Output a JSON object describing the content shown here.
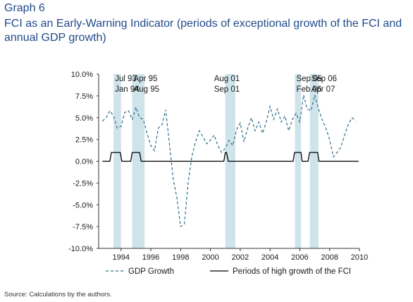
{
  "figure": {
    "label": "Graph 6",
    "title": "FCI as an Early-Warning Indicator (periods of exceptional growth of the FCI and annual GDP growth)",
    "source": "Source: Calculations by the authors."
  },
  "colors": {
    "title": "#1f4a8a",
    "shading": "#cfe3ea",
    "gdp_line": "#2e6e8a",
    "fci_line": "#000000",
    "axis_text": "#1a1a1a"
  },
  "chart_data": {
    "type": "line",
    "title": "",
    "xlabel": "",
    "ylabel": "",
    "xlim": [
      1992.5,
      2010.0
    ],
    "ylim": [
      -10.0,
      10.0
    ],
    "grid": false,
    "legend_position": "bottom",
    "x_ticks": [
      1994,
      1996,
      1998,
      2000,
      2002,
      2004,
      2006,
      2008,
      2010
    ],
    "x_tick_labels": [
      "1994",
      "1996",
      "1998",
      "2000",
      "2002",
      "2004",
      "2006",
      "2008",
      "2010"
    ],
    "y_ticks": [
      -10,
      -7.5,
      -5,
      -2.5,
      0,
      2.5,
      5,
      7.5,
      10
    ],
    "y_tick_labels": [
      "-10.0%",
      "-7.5%",
      "-5.0%",
      "-2.5%",
      "0.0%",
      "2.5%",
      "5.0%",
      "7.5%",
      "10.0%"
    ],
    "shaded_periods": [
      {
        "start": 1993.5,
        "end": 1994.0,
        "label_top": "Jul 93",
        "label_bottom": "Jan 94"
      },
      {
        "start": 1994.75,
        "end": 1995.58,
        "label_top": "Apr 95",
        "label_bottom": "Aug 95"
      },
      {
        "start": 2001.0,
        "end": 2001.67,
        "label_top": "Aug 01",
        "label_bottom": "Sep 01"
      },
      {
        "start": 2005.67,
        "end": 2006.08,
        "label_top": "Sep 05",
        "label_bottom": "Feb 06"
      },
      {
        "start": 2006.67,
        "end": 2007.25,
        "label_top": "Sep 06",
        "label_bottom": "Apr 07"
      }
    ],
    "series": [
      {
        "name": "GDP Growth",
        "style": "dashed",
        "points": [
          [
            1992.75,
            4.6
          ],
          [
            1993.0,
            5.0
          ],
          [
            1993.25,
            5.8
          ],
          [
            1993.5,
            5.2
          ],
          [
            1993.75,
            3.8
          ],
          [
            1994.0,
            4.0
          ],
          [
            1994.25,
            5.6
          ],
          [
            1994.5,
            5.8
          ],
          [
            1994.75,
            4.8
          ],
          [
            1995.0,
            6.2
          ],
          [
            1995.25,
            5.0
          ],
          [
            1995.5,
            4.8
          ],
          [
            1995.75,
            3.2
          ],
          [
            1996.0,
            1.8
          ],
          [
            1996.25,
            1.2
          ],
          [
            1996.5,
            3.8
          ],
          [
            1996.75,
            4.2
          ],
          [
            1997.0,
            5.9
          ],
          [
            1997.25,
            2.0
          ],
          [
            1997.5,
            -2.0
          ],
          [
            1997.75,
            -4.2
          ],
          [
            1998.0,
            -7.5
          ],
          [
            1998.25,
            -7.2
          ],
          [
            1998.5,
            -2.5
          ],
          [
            1998.75,
            0.5
          ],
          [
            1999.0,
            2.2
          ],
          [
            1999.25,
            3.5
          ],
          [
            1999.5,
            2.8
          ],
          [
            1999.75,
            2.0
          ],
          [
            2000.0,
            2.4
          ],
          [
            2000.25,
            3.0
          ],
          [
            2000.5,
            1.8
          ],
          [
            2000.75,
            1.0
          ],
          [
            2001.0,
            1.5
          ],
          [
            2001.25,
            2.4
          ],
          [
            2001.5,
            1.8
          ],
          [
            2001.75,
            3.6
          ],
          [
            2002.0,
            4.4
          ],
          [
            2002.25,
            2.2
          ],
          [
            2002.5,
            3.8
          ],
          [
            2002.75,
            5.0
          ],
          [
            2003.0,
            3.5
          ],
          [
            2003.25,
            4.5
          ],
          [
            2003.5,
            3.2
          ],
          [
            2003.75,
            4.5
          ],
          [
            2004.0,
            6.3
          ],
          [
            2004.25,
            4.8
          ],
          [
            2004.5,
            6.0
          ],
          [
            2004.75,
            4.5
          ],
          [
            2005.0,
            5.2
          ],
          [
            2005.25,
            3.5
          ],
          [
            2005.5,
            4.8
          ],
          [
            2005.75,
            5.5
          ],
          [
            2006.0,
            4.5
          ],
          [
            2006.25,
            7.6
          ],
          [
            2006.5,
            6.0
          ],
          [
            2006.75,
            5.8
          ],
          [
            2007.0,
            7.6
          ],
          [
            2007.25,
            6.0
          ],
          [
            2007.5,
            4.8
          ],
          [
            2007.75,
            3.8
          ],
          [
            2008.0,
            2.5
          ],
          [
            2008.25,
            0.5
          ],
          [
            2008.5,
            1.0
          ],
          [
            2008.75,
            1.6
          ],
          [
            2009.0,
            3.0
          ],
          [
            2009.25,
            4.2
          ],
          [
            2009.5,
            5.0
          ],
          [
            2009.75,
            4.6
          ]
        ]
      },
      {
        "name": "Periods of high growth of the FCI",
        "style": "solid",
        "points": [
          [
            1992.75,
            0
          ],
          [
            1993.25,
            0
          ],
          [
            1993.35,
            1
          ],
          [
            1993.95,
            1
          ],
          [
            1994.05,
            0
          ],
          [
            1994.65,
            0
          ],
          [
            1994.75,
            1
          ],
          [
            1995.25,
            1
          ],
          [
            1995.35,
            0
          ],
          [
            2000.9,
            0
          ],
          [
            2001.0,
            1
          ],
          [
            2001.08,
            1
          ],
          [
            2001.2,
            0
          ],
          [
            2005.55,
            0
          ],
          [
            2005.65,
            1
          ],
          [
            2006.08,
            1
          ],
          [
            2006.15,
            0
          ],
          [
            2006.55,
            0
          ],
          [
            2006.65,
            1
          ],
          [
            2007.2,
            1
          ],
          [
            2007.28,
            0
          ],
          [
            2009.95,
            0
          ]
        ]
      }
    ]
  }
}
